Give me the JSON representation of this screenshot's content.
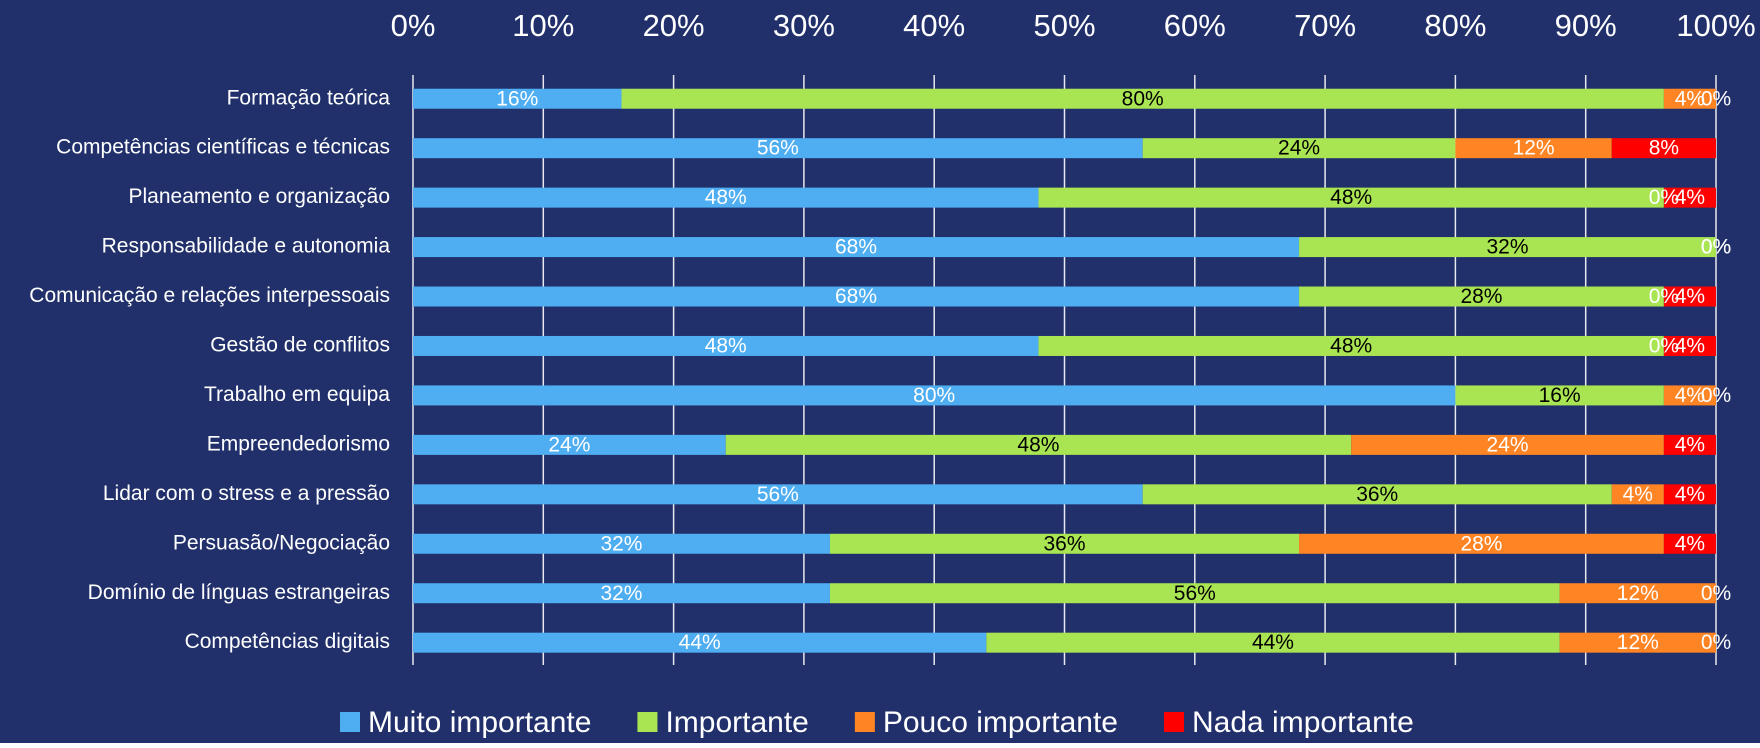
{
  "chart_data": {
    "type": "stacked-bar-horizontal",
    "categories": [
      "Formação teórica",
      "Competências científicas e técnicas",
      "Planeamento e organização",
      "Responsabilidade e autonomia",
      "Comunicação e relações interpessoais",
      "Gestão de conflitos",
      "Trabalho em equipa",
      "Empreendedorismo",
      "Lidar com o stress e a pressão",
      "Persuasão/Negociação",
      "Domínio de línguas estrangeiras",
      "Competências digitais"
    ],
    "series": [
      {
        "name": "Muito importante",
        "color": "#4fadf2",
        "label_color": "#ffffff",
        "values": [
          16,
          56,
          48,
          68,
          68,
          48,
          80,
          24,
          56,
          32,
          32,
          44
        ],
        "value_labels": [
          "16%",
          "56%",
          "48%",
          "68%",
          "68%",
          "48%",
          "80%",
          "24%",
          "56%",
          "32%",
          "32%",
          "44%"
        ]
      },
      {
        "name": "Importante",
        "color": "#a9e452",
        "label_color": "#000000",
        "values": [
          80,
          24,
          48,
          32,
          28,
          48,
          16,
          48,
          36,
          36,
          56,
          44
        ],
        "value_labels": [
          "80%",
          "24%",
          "48%",
          "32%",
          "28%",
          "48%",
          "16%",
          "48%",
          "36%",
          "36%",
          "56%",
          "44%"
        ]
      },
      {
        "name": "Pouco importante",
        "color": "#ff8424",
        "label_color": "#ffffff",
        "values": [
          4,
          12,
          0,
          0,
          0,
          0,
          4,
          24,
          4,
          28,
          12,
          12
        ],
        "value_labels": [
          "4%",
          "12%",
          "0%",
          "0%",
          "0%",
          "0%",
          "4%",
          "24%",
          "4%",
          "28%",
          "12%",
          "12%"
        ]
      },
      {
        "name": "Nada importante",
        "color": "#ff0000",
        "label_color": "#ffffff",
        "values": [
          0,
          8,
          4,
          0,
          4,
          4,
          0,
          4,
          4,
          4,
          0,
          0
        ],
        "value_labels": [
          "0%",
          "8%",
          "4%",
          "0%",
          "4%",
          "4%",
          "0%",
          "4%",
          "4%",
          "4%",
          "0%",
          "0%"
        ]
      }
    ],
    "xlim": [
      0,
      100
    ],
    "xticks": [
      {
        "value": 0,
        "label": "0%"
      },
      {
        "value": 10,
        "label": "10%"
      },
      {
        "value": 20,
        "label": "20%"
      },
      {
        "value": 30,
        "label": "30%"
      },
      {
        "value": 40,
        "label": "40%"
      },
      {
        "value": 50,
        "label": "50%"
      },
      {
        "value": 60,
        "label": "60%"
      },
      {
        "value": 70,
        "label": "70%"
      },
      {
        "value": 80,
        "label": "80%"
      },
      {
        "value": 90,
        "label": "90%"
      },
      {
        "value": 100,
        "label": "100%"
      }
    ],
    "grid": true,
    "legend": "bottom",
    "background": "#21306b"
  }
}
